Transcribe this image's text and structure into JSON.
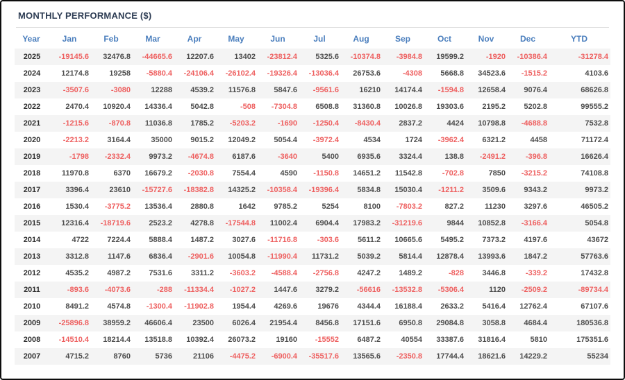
{
  "panel": {
    "title": "MONTHLY PERFORMANCE ($)"
  },
  "colors": {
    "title_text": "#2e3d54",
    "header_text": "#4a7ebd",
    "positive_text": "#4d4d4d",
    "negative": "#ee5f5f",
    "row_stripe": "#f4f4f4",
    "frame_border": "#0d0d0d"
  },
  "chart_data": {
    "type": "table",
    "title": "MONTHLY PERFORMANCE ($)",
    "columns": [
      "Year",
      "Jan",
      "Feb",
      "Mar",
      "Apr",
      "May",
      "Jun",
      "Jul",
      "Aug",
      "Sep",
      "Oct",
      "Nov",
      "Dec",
      "YTD"
    ],
    "rows": [
      {
        "year": "2025",
        "values": [
          "-19145.6",
          "32476.8",
          "-44665.6",
          "12207.6",
          "13402",
          "-23812.4",
          "5325.6",
          "-10374.8",
          "-3984.8",
          "19599.2",
          "-1920",
          "-10386.4",
          "-31278.4"
        ]
      },
      {
        "year": "2024",
        "values": [
          "12174.8",
          "19258",
          "-5880.4",
          "-24106.4",
          "-26102.4",
          "-19326.4",
          "-13036.4",
          "26753.6",
          "-4308",
          "5668.8",
          "34523.6",
          "-1515.2",
          "4103.6"
        ]
      },
      {
        "year": "2023",
        "values": [
          "-3507.6",
          "-3080",
          "12288",
          "4539.2",
          "11576.8",
          "5847.6",
          "-9561.6",
          "16210",
          "14174.4",
          "-1594.8",
          "12658.4",
          "9076.4",
          "68626.8"
        ]
      },
      {
        "year": "2022",
        "values": [
          "2470.4",
          "10920.4",
          "14336.4",
          "5042.8",
          "-508",
          "-7304.8",
          "6508.8",
          "31360.8",
          "10026.8",
          "19303.6",
          "2195.2",
          "5202.8",
          "99555.2"
        ]
      },
      {
        "year": "2021",
        "values": [
          "-1215.6",
          "-870.8",
          "11036.8",
          "1785.2",
          "-5203.2",
          "-1690",
          "-1250.4",
          "-8430.4",
          "2837.2",
          "4424",
          "10798.8",
          "-4688.8",
          "7532.8"
        ]
      },
      {
        "year": "2020",
        "values": [
          "-2213.2",
          "3164.4",
          "35000",
          "9015.2",
          "12049.2",
          "5054.4",
          "-3972.4",
          "4534",
          "1724",
          "-3962.4",
          "6321.2",
          "4458",
          "71172.4"
        ]
      },
      {
        "year": "2019",
        "values": [
          "-1798",
          "-2332.4",
          "9973.2",
          "-4674.8",
          "6187.6",
          "-3640",
          "5400",
          "6935.6",
          "3324.4",
          "138.8",
          "-2491.2",
          "-396.8",
          "16626.4"
        ]
      },
      {
        "year": "2018",
        "values": [
          "11970.8",
          "6370",
          "16679.2",
          "-2030.8",
          "7554.4",
          "4590",
          "-1150.8",
          "14651.2",
          "11542.8",
          "-702.8",
          "7850",
          "-3215.2",
          "74108.8"
        ]
      },
      {
        "year": "2017",
        "values": [
          "3396.4",
          "23610",
          "-15727.6",
          "-18382.8",
          "14325.2",
          "-10358.4",
          "-19396.4",
          "5834.8",
          "15030.4",
          "-1211.2",
          "3509.6",
          "9343.2",
          "9973.2"
        ]
      },
      {
        "year": "2016",
        "values": [
          "1530.4",
          "-3775.2",
          "13536.4",
          "2880.8",
          "1642",
          "9785.2",
          "5254",
          "8100",
          "-7803.2",
          "827.2",
          "11230",
          "3297.6",
          "46505.2"
        ]
      },
      {
        "year": "2015",
        "values": [
          "12316.4",
          "-18719.6",
          "2523.2",
          "4278.8",
          "-17544.8",
          "11002.4",
          "6904.4",
          "17983.2",
          "-31219.6",
          "9844",
          "10852.8",
          "-3166.4",
          "5054.8"
        ]
      },
      {
        "year": "2014",
        "values": [
          "4722",
          "7224.4",
          "5888.4",
          "1487.2",
          "3027.6",
          "-11716.8",
          "-303.6",
          "5611.2",
          "10665.6",
          "5495.2",
          "7373.2",
          "4197.6",
          "43672"
        ]
      },
      {
        "year": "2013",
        "values": [
          "3312.8",
          "1147.6",
          "6836.4",
          "-2901.6",
          "10054.8",
          "-11990.4",
          "11731.2",
          "5039.2",
          "5814.4",
          "12878.4",
          "13993.6",
          "1847.2",
          "57763.6"
        ]
      },
      {
        "year": "2012",
        "values": [
          "4535.2",
          "4987.2",
          "7531.6",
          "3311.2",
          "-3603.2",
          "-4588.4",
          "-2756.8",
          "4247.2",
          "1489.2",
          "-828",
          "3446.8",
          "-339.2",
          "17432.8"
        ]
      },
      {
        "year": "2011",
        "values": [
          "-893.6",
          "-4073.6",
          "-288",
          "-11334.4",
          "-1027.2",
          "1447.6",
          "3279.2",
          "-56616",
          "-13532.8",
          "-5306.4",
          "1120",
          "-2509.2",
          "-89734.4"
        ]
      },
      {
        "year": "2010",
        "values": [
          "8491.2",
          "4574.8",
          "-1300.4",
          "-11902.8",
          "1954.4",
          "4269.6",
          "19676",
          "4344.4",
          "16188.4",
          "2633.2",
          "5416.4",
          "12762.4",
          "67107.6"
        ]
      },
      {
        "year": "2009",
        "values": [
          "-25896.8",
          "38959.2",
          "46606.4",
          "23500",
          "6026.4",
          "21954.4",
          "8456.8",
          "17151.6",
          "6950.8",
          "29084.8",
          "3058.8",
          "4684.4",
          "180536.8"
        ]
      },
      {
        "year": "2008",
        "values": [
          "-14510.4",
          "18214.4",
          "13518.8",
          "10392.4",
          "26073.2",
          "19160",
          "-15552",
          "6487.2",
          "40554",
          "33387.6",
          "31816.4",
          "5810",
          "175351.6"
        ]
      },
      {
        "year": "2007",
        "values": [
          "4715.2",
          "8760",
          "5736",
          "21106",
          "-4475.2",
          "-6900.4",
          "-35517.6",
          "13565.6",
          "-2350.8",
          "17744.4",
          "18621.6",
          "14229.2",
          "55234"
        ]
      }
    ]
  }
}
